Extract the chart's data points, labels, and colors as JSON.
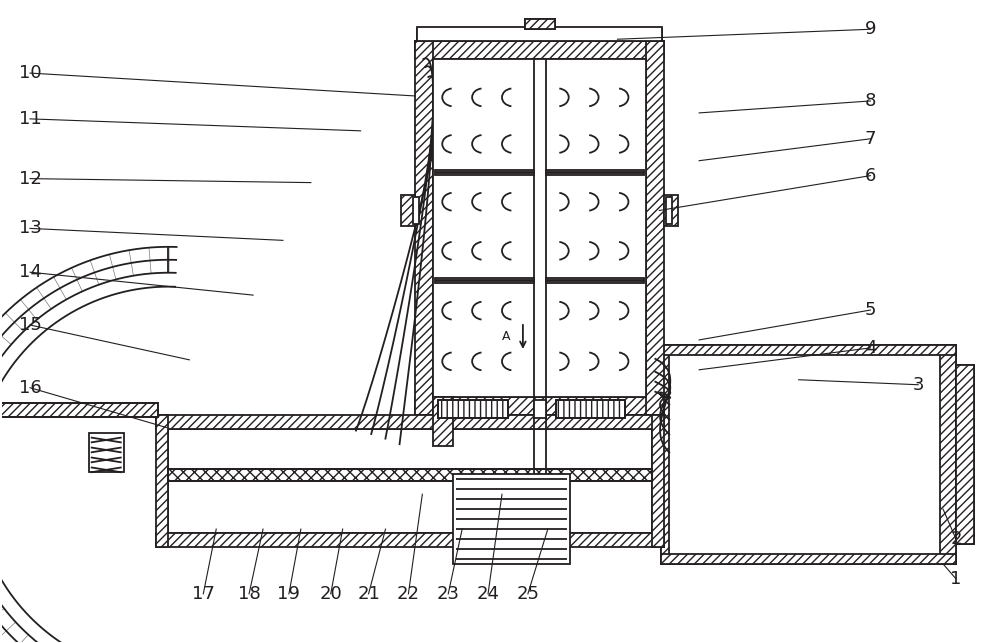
{
  "bg_color": "#ffffff",
  "line_color": "#231f20",
  "lw": 1.3,
  "fig_width": 10.0,
  "fig_height": 6.43,
  "label_positions": {
    "9": [
      872,
      28,
      618,
      38
    ],
    "8": [
      872,
      100,
      700,
      112
    ],
    "7": [
      872,
      138,
      700,
      160
    ],
    "6": [
      872,
      175,
      660,
      210
    ],
    "5": [
      872,
      310,
      700,
      340
    ],
    "4": [
      872,
      348,
      700,
      370
    ],
    "3": [
      920,
      385,
      800,
      380
    ],
    "2": [
      958,
      540,
      945,
      510
    ],
    "1": [
      958,
      580,
      945,
      565
    ],
    "10": [
      28,
      72,
      415,
      95
    ],
    "11": [
      28,
      118,
      360,
      130
    ],
    "12": [
      28,
      178,
      310,
      182
    ],
    "13": [
      28,
      228,
      282,
      240
    ],
    "14": [
      28,
      272,
      252,
      295
    ],
    "15": [
      28,
      325,
      188,
      360
    ],
    "16": [
      28,
      388,
      165,
      428
    ],
    "17": [
      202,
      595,
      215,
      530
    ],
    "18": [
      248,
      595,
      262,
      530
    ],
    "19": [
      288,
      595,
      300,
      530
    ],
    "20": [
      330,
      595,
      342,
      530
    ],
    "21": [
      368,
      595,
      385,
      530
    ],
    "22": [
      408,
      595,
      422,
      495
    ],
    "23": [
      448,
      595,
      462,
      530
    ],
    "24": [
      488,
      595,
      502,
      495
    ],
    "25": [
      528,
      595,
      548,
      530
    ]
  }
}
